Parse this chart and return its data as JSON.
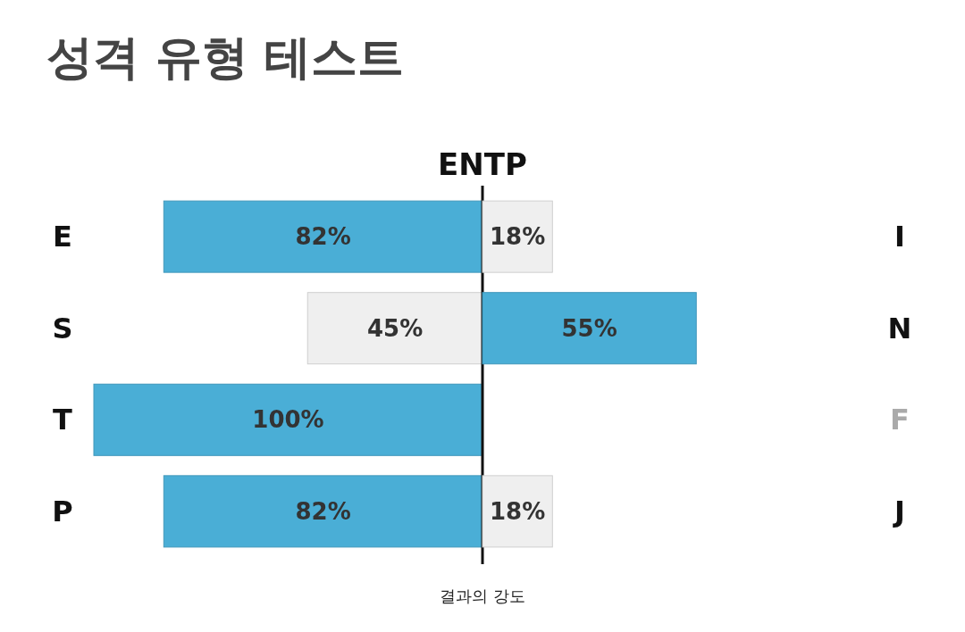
{
  "chart_data": [
    {
      "type": "bar",
      "orientation": "horizontal",
      "title": "성격 유형 테스트",
      "subtitle": "ENTP",
      "xlabel": "결과의 강도",
      "categories": [
        "E",
        "S",
        "T",
        "P"
      ],
      "values": [
        82,
        45,
        100,
        82
      ],
      "value_labels": [
        "82%",
        "45%",
        "100%",
        "82%"
      ],
      "colors": [
        "#4aaed6",
        "#efefef",
        "#4aaed6",
        "#4aaed6"
      ],
      "xlim": [
        100,
        0
      ],
      "ref_lines": [
        {
          "axis": "x",
          "value": 0,
          "color": "#111111"
        }
      ],
      "tick_labels": "y"
    },
    {
      "type": "bar",
      "orientation": "horizontal",
      "categories": [
        "I",
        "N",
        "F",
        "J"
      ],
      "values": [
        18,
        55,
        0,
        18
      ],
      "value_labels": [
        "18%",
        "55%",
        null,
        "18%"
      ],
      "colors": [
        "#efefef",
        "#4aaed6",
        "#efefef",
        "#efefef"
      ],
      "tick_labels": "y"
    }
  ]
}
